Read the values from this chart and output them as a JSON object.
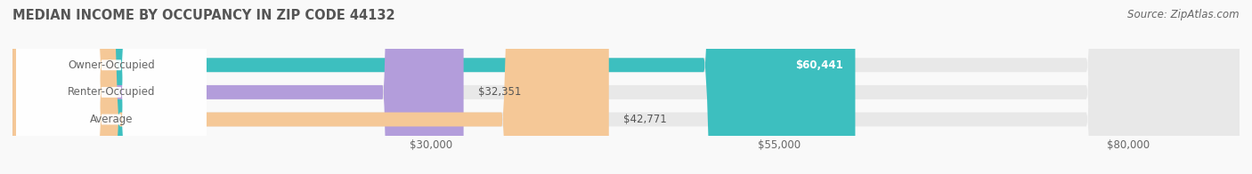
{
  "title": "MEDIAN INCOME BY OCCUPANCY IN ZIP CODE 44132",
  "source": "Source: ZipAtlas.com",
  "categories": [
    "Owner-Occupied",
    "Renter-Occupied",
    "Average"
  ],
  "values": [
    60441,
    32351,
    42771
  ],
  "bar_colors": [
    "#3dbfbf",
    "#b39ddb",
    "#f5c897"
  ],
  "bar_bg_color": "#e8e8e8",
  "value_labels": [
    "$60,441",
    "$32,351",
    "$42,771"
  ],
  "x_ticks": [
    30000,
    55000,
    80000
  ],
  "x_tick_labels": [
    "$30,000",
    "$55,000",
    "$80,000"
  ],
  "x_min": 0,
  "x_max": 88000,
  "background_color": "#f9f9f9",
  "title_color": "#555555",
  "label_color": "#666666",
  "value_label_color_on_bar": "#ffffff",
  "value_label_color_off_bar": "#555555",
  "title_fontsize": 10.5,
  "bar_label_fontsize": 8.5,
  "value_fontsize": 8.5,
  "tick_fontsize": 8.5,
  "source_fontsize": 8.5,
  "bar_height": 0.52,
  "label_box_color": "#ffffff"
}
